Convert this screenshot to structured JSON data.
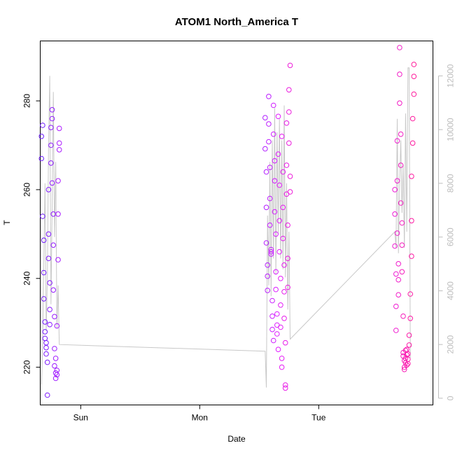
{
  "chart_data": {
    "type": "scatter",
    "title": "ATOM1 North_America T",
    "xlabel": "Date",
    "ylabel": "T",
    "x_ticks": [
      "Sun",
      "Mon",
      "Tue"
    ],
    "y_ticks": [
      220,
      240,
      260,
      280
    ],
    "y_right_ticks": [
      0,
      2000,
      4000,
      6000,
      8000,
      10000,
      12000
    ],
    "xlim": [
      -0.34,
      2.96
    ],
    "ylim": [
      211.5,
      293.5
    ],
    "y_right_lim": [
      -250,
      13300
    ],
    "grid": false,
    "colors": {
      "start": "#6a1bff",
      "mid": "#e21cff",
      "end": "#ff1a9a",
      "line": "#c8c8c8"
    },
    "points": [
      {
        "x": -0.33,
        "y": 272.0
      },
      {
        "x": -0.33,
        "y": 267.0
      },
      {
        "x": -0.32,
        "y": 274.5
      },
      {
        "x": -0.32,
        "y": 254.0
      },
      {
        "x": -0.31,
        "y": 248.6
      },
      {
        "x": -0.31,
        "y": 241.3
      },
      {
        "x": -0.31,
        "y": 235.4
      },
      {
        "x": -0.3,
        "y": 230.2
      },
      {
        "x": -0.3,
        "y": 228.0
      },
      {
        "x": -0.3,
        "y": 226.5
      },
      {
        "x": -0.29,
        "y": 225.5
      },
      {
        "x": -0.29,
        "y": 224.4
      },
      {
        "x": -0.29,
        "y": 223.0
      },
      {
        "x": -0.28,
        "y": 221.1
      },
      {
        "x": -0.28,
        "y": 213.7
      },
      {
        "x": -0.27,
        "y": 260.0
      },
      {
        "x": -0.27,
        "y": 250.0
      },
      {
        "x": -0.27,
        "y": 244.5
      },
      {
        "x": -0.26,
        "y": 239.0
      },
      {
        "x": -0.26,
        "y": 233.0
      },
      {
        "x": -0.26,
        "y": 229.6
      },
      {
        "x": -0.25,
        "y": 274.0
      },
      {
        "x": -0.25,
        "y": 270.0
      },
      {
        "x": -0.25,
        "y": 266.0
      },
      {
        "x": -0.24,
        "y": 278.0
      },
      {
        "x": -0.24,
        "y": 276.0
      },
      {
        "x": -0.24,
        "y": 261.5
      },
      {
        "x": -0.23,
        "y": 254.5
      },
      {
        "x": -0.23,
        "y": 247.5
      },
      {
        "x": -0.23,
        "y": 237.4
      },
      {
        "x": -0.22,
        "y": 231.4
      },
      {
        "x": -0.22,
        "y": 224.2
      },
      {
        "x": -0.22,
        "y": 220.3
      },
      {
        "x": -0.21,
        "y": 218.7
      },
      {
        "x": -0.21,
        "y": 217.5
      },
      {
        "x": -0.21,
        "y": 222.0
      },
      {
        "x": -0.2,
        "y": 219.3
      },
      {
        "x": -0.2,
        "y": 218.3
      },
      {
        "x": -0.2,
        "y": 229.3
      },
      {
        "x": -0.19,
        "y": 244.2
      },
      {
        "x": -0.19,
        "y": 254.5
      },
      {
        "x": -0.19,
        "y": 262.0
      },
      {
        "x": -0.18,
        "y": 269.0
      },
      {
        "x": -0.18,
        "y": 270.5
      },
      {
        "x": -0.18,
        "y": 273.8
      },
      {
        "x": 1.55,
        "y": 276.2
      },
      {
        "x": 1.55,
        "y": 269.2
      },
      {
        "x": 1.56,
        "y": 264.0
      },
      {
        "x": 1.56,
        "y": 256.0
      },
      {
        "x": 1.56,
        "y": 248.0
      },
      {
        "x": 1.57,
        "y": 243.0
      },
      {
        "x": 1.57,
        "y": 240.5
      },
      {
        "x": 1.57,
        "y": 237.3
      },
      {
        "x": 1.58,
        "y": 281.0
      },
      {
        "x": 1.58,
        "y": 274.8
      },
      {
        "x": 1.58,
        "y": 270.8
      },
      {
        "x": 1.59,
        "y": 265.0
      },
      {
        "x": 1.59,
        "y": 258.0
      },
      {
        "x": 1.59,
        "y": 252.0
      },
      {
        "x": 1.6,
        "y": 246.5
      },
      {
        "x": 1.6,
        "y": 246.0
      },
      {
        "x": 1.6,
        "y": 245.5
      },
      {
        "x": 1.61,
        "y": 235.0
      },
      {
        "x": 1.61,
        "y": 231.5
      },
      {
        "x": 1.61,
        "y": 228.5
      },
      {
        "x": 1.62,
        "y": 226.0
      },
      {
        "x": 1.62,
        "y": 279.0
      },
      {
        "x": 1.62,
        "y": 272.5
      },
      {
        "x": 1.63,
        "y": 266.5
      },
      {
        "x": 1.63,
        "y": 262.0
      },
      {
        "x": 1.63,
        "y": 255.0
      },
      {
        "x": 1.64,
        "y": 250.0
      },
      {
        "x": 1.64,
        "y": 241.5
      },
      {
        "x": 1.64,
        "y": 237.5
      },
      {
        "x": 1.65,
        "y": 232.0
      },
      {
        "x": 1.65,
        "y": 229.5
      },
      {
        "x": 1.65,
        "y": 227.5
      },
      {
        "x": 1.66,
        "y": 224.0
      },
      {
        "x": 1.66,
        "y": 276.5
      },
      {
        "x": 1.66,
        "y": 268.0
      },
      {
        "x": 1.67,
        "y": 261.0
      },
      {
        "x": 1.67,
        "y": 253.0
      },
      {
        "x": 1.67,
        "y": 246.0
      },
      {
        "x": 1.68,
        "y": 240.0
      },
      {
        "x": 1.68,
        "y": 234.0
      },
      {
        "x": 1.68,
        "y": 229.0
      },
      {
        "x": 1.69,
        "y": 222.0
      },
      {
        "x": 1.69,
        "y": 220.0
      },
      {
        "x": 1.69,
        "y": 272.0
      },
      {
        "x": 1.7,
        "y": 264.0
      },
      {
        "x": 1.7,
        "y": 256.0
      },
      {
        "x": 1.7,
        "y": 249.0
      },
      {
        "x": 1.71,
        "y": 243.0
      },
      {
        "x": 1.71,
        "y": 237.0
      },
      {
        "x": 1.71,
        "y": 231.0
      },
      {
        "x": 1.72,
        "y": 225.5
      },
      {
        "x": 1.72,
        "y": 216.0
      },
      {
        "x": 1.72,
        "y": 215.3
      },
      {
        "x": 1.73,
        "y": 275.0
      },
      {
        "x": 1.73,
        "y": 265.5
      },
      {
        "x": 1.73,
        "y": 259.0
      },
      {
        "x": 1.74,
        "y": 252.0
      },
      {
        "x": 1.74,
        "y": 244.5
      },
      {
        "x": 1.74,
        "y": 238.0
      },
      {
        "x": 1.75,
        "y": 282.5
      },
      {
        "x": 1.75,
        "y": 277.5
      },
      {
        "x": 1.75,
        "y": 270.5
      },
      {
        "x": 1.76,
        "y": 263.0
      },
      {
        "x": 1.76,
        "y": 259.5
      },
      {
        "x": 1.76,
        "y": 288.0
      },
      {
        "x": 2.64,
        "y": 260.0
      },
      {
        "x": 2.64,
        "y": 254.5
      },
      {
        "x": 2.64,
        "y": 247.3
      },
      {
        "x": 2.65,
        "y": 241.0
      },
      {
        "x": 2.65,
        "y": 233.7
      },
      {
        "x": 2.65,
        "y": 228.3
      },
      {
        "x": 2.66,
        "y": 271.0
      },
      {
        "x": 2.66,
        "y": 262.0
      },
      {
        "x": 2.66,
        "y": 250.2
      },
      {
        "x": 2.67,
        "y": 243.3
      },
      {
        "x": 2.67,
        "y": 239.7
      },
      {
        "x": 2.67,
        "y": 236.3
      },
      {
        "x": 2.68,
        "y": 292.0
      },
      {
        "x": 2.68,
        "y": 286.0
      },
      {
        "x": 2.68,
        "y": 279.5
      },
      {
        "x": 2.69,
        "y": 272.5
      },
      {
        "x": 2.69,
        "y": 265.5
      },
      {
        "x": 2.69,
        "y": 257.0
      },
      {
        "x": 2.7,
        "y": 252.5
      },
      {
        "x": 2.7,
        "y": 247.5
      },
      {
        "x": 2.7,
        "y": 241.5
      },
      {
        "x": 2.71,
        "y": 231.5
      },
      {
        "x": 2.71,
        "y": 223.3
      },
      {
        "x": 2.71,
        "y": 222.5
      },
      {
        "x": 2.72,
        "y": 221.5
      },
      {
        "x": 2.72,
        "y": 220.0
      },
      {
        "x": 2.72,
        "y": 219.5
      },
      {
        "x": 2.73,
        "y": 223.8
      },
      {
        "x": 2.73,
        "y": 222.0
      },
      {
        "x": 2.73,
        "y": 221.0
      },
      {
        "x": 2.74,
        "y": 224.0
      },
      {
        "x": 2.74,
        "y": 222.8
      },
      {
        "x": 2.74,
        "y": 220.5
      },
      {
        "x": 2.75,
        "y": 223.0
      },
      {
        "x": 2.75,
        "y": 221.8
      },
      {
        "x": 2.75,
        "y": 220.8
      },
      {
        "x": 2.76,
        "y": 227.2
      },
      {
        "x": 2.76,
        "y": 225.0
      },
      {
        "x": 2.77,
        "y": 231.0
      },
      {
        "x": 2.77,
        "y": 236.5
      },
      {
        "x": 2.78,
        "y": 245.0
      },
      {
        "x": 2.78,
        "y": 253.0
      },
      {
        "x": 2.78,
        "y": 263.0
      },
      {
        "x": 2.79,
        "y": 270.5
      },
      {
        "x": 2.79,
        "y": 276.0
      },
      {
        "x": 2.8,
        "y": 281.5
      },
      {
        "x": 2.8,
        "y": 285.5
      },
      {
        "x": 2.8,
        "y": 288.2
      }
    ],
    "line_points": [
      {
        "x": -0.33,
        "y": 500
      },
      {
        "x": -0.32,
        "y": 2000
      },
      {
        "x": -0.31,
        "y": 5000
      },
      {
        "x": -0.3,
        "y": 8000
      },
      {
        "x": -0.29,
        "y": 2500
      },
      {
        "x": -0.28,
        "y": 4500
      },
      {
        "x": -0.27,
        "y": 9500
      },
      {
        "x": -0.26,
        "y": 12000
      },
      {
        "x": -0.25,
        "y": 3500
      },
      {
        "x": -0.24,
        "y": 7000
      },
      {
        "x": -0.23,
        "y": 11400
      },
      {
        "x": -0.22,
        "y": 6000
      },
      {
        "x": -0.21,
        "y": 8800
      },
      {
        "x": -0.2,
        "y": 2600
      },
      {
        "x": -0.19,
        "y": 4200
      },
      {
        "x": -0.18,
        "y": 2000
      },
      {
        "x": 1.55,
        "y": 1750
      },
      {
        "x": 1.56,
        "y": 400
      },
      {
        "x": 1.57,
        "y": 6800
      },
      {
        "x": 1.58,
        "y": 4200
      },
      {
        "x": 1.59,
        "y": 8800
      },
      {
        "x": 1.6,
        "y": 3800
      },
      {
        "x": 1.61,
        "y": 9600
      },
      {
        "x": 1.62,
        "y": 5200
      },
      {
        "x": 1.63,
        "y": 10800
      },
      {
        "x": 1.64,
        "y": 4600
      },
      {
        "x": 1.65,
        "y": 9900
      },
      {
        "x": 1.66,
        "y": 6100
      },
      {
        "x": 1.67,
        "y": 10400
      },
      {
        "x": 1.68,
        "y": 5200
      },
      {
        "x": 1.69,
        "y": 9600
      },
      {
        "x": 1.7,
        "y": 4800
      },
      {
        "x": 1.71,
        "y": 10900
      },
      {
        "x": 1.72,
        "y": 4500
      },
      {
        "x": 1.73,
        "y": 8000
      },
      {
        "x": 1.74,
        "y": 3300
      },
      {
        "x": 1.75,
        "y": 6200
      },
      {
        "x": 1.76,
        "y": 2200
      },
      {
        "x": 2.64,
        "y": 6200
      },
      {
        "x": 2.65,
        "y": 5600
      },
      {
        "x": 2.66,
        "y": 10400
      },
      {
        "x": 2.67,
        "y": 5400
      },
      {
        "x": 2.68,
        "y": 8000
      },
      {
        "x": 2.69,
        "y": 9600
      },
      {
        "x": 2.7,
        "y": 6900
      },
      {
        "x": 2.71,
        "y": 8700
      },
      {
        "x": 2.72,
        "y": 5600
      },
      {
        "x": 2.73,
        "y": 10600
      },
      {
        "x": 2.74,
        "y": 6200
      },
      {
        "x": 2.75,
        "y": 12300
      },
      {
        "x": 2.76,
        "y": 12300
      },
      {
        "x": 2.77,
        "y": 1500
      }
    ]
  }
}
